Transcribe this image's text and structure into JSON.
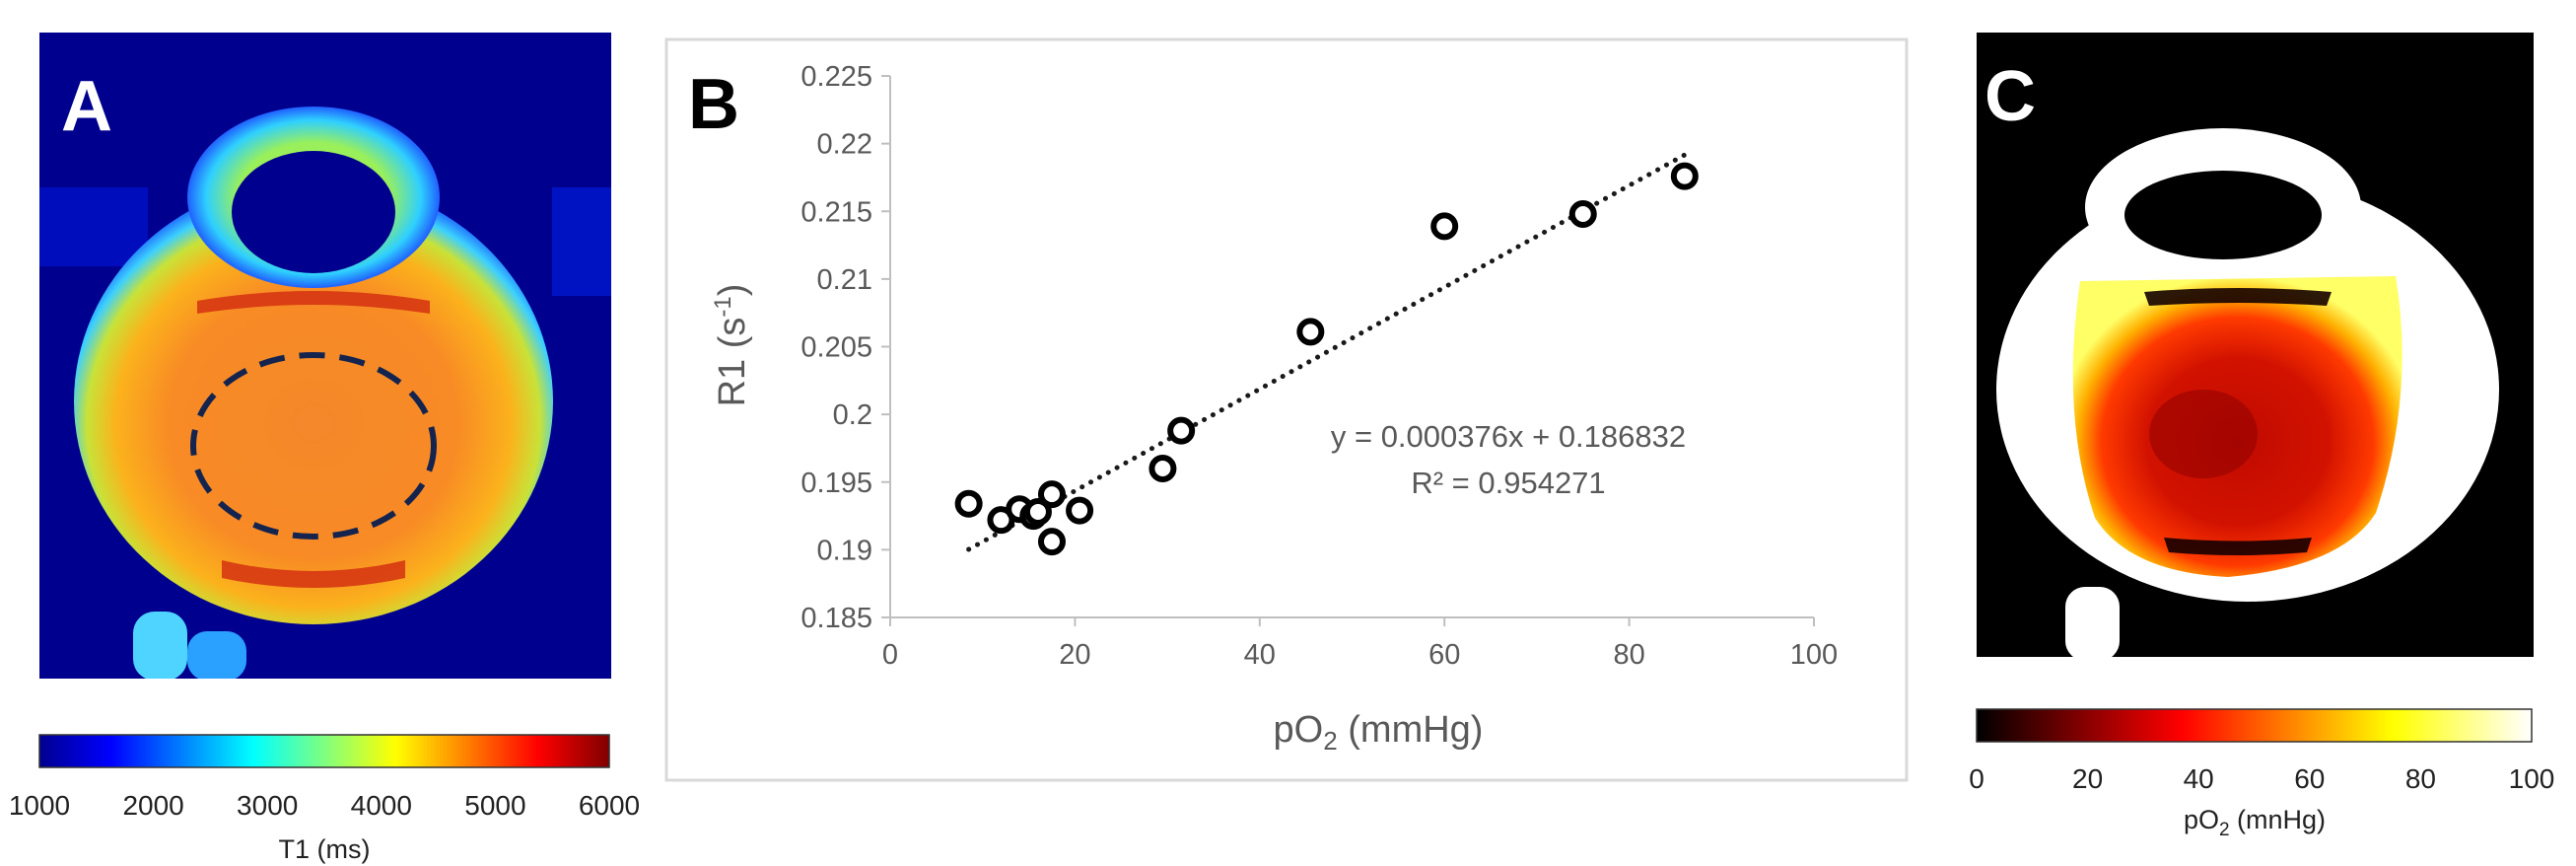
{
  "panels": {
    "a": {
      "letter": "A"
    },
    "b": {
      "letter": "B"
    },
    "c": {
      "letter": "C"
    }
  },
  "colorbar_a": {
    "label": "T1 (ms)",
    "ticks": [
      "1000",
      "2000",
      "3000",
      "4000",
      "5000",
      "6000"
    ],
    "colormap": "jet"
  },
  "colorbar_c": {
    "label_main": "pO",
    "label_sub": "2",
    "label_unit": " (mnHg)",
    "ticks": [
      "0",
      "20",
      "40",
      "60",
      "80",
      "100"
    ],
    "colormap": "hot"
  },
  "chart_data": {
    "type": "scatter",
    "title": "",
    "xlabel_main": "pO",
    "xlabel_sub": "2",
    "xlabel_unit": " (mmHg)",
    "ylabel_main": "R1 (s",
    "ylabel_sup": "-1",
    "ylabel_close": ")",
    "xlim": [
      0,
      100
    ],
    "ylim": [
      0.185,
      0.225
    ],
    "x_ticks": [
      "0",
      "20",
      "40",
      "60",
      "80",
      "100"
    ],
    "y_ticks": [
      "0.185",
      "0.19",
      "0.195",
      "0.2",
      "0.205",
      "0.21",
      "0.215",
      "0.22",
      "0.225"
    ],
    "points": [
      {
        "x": 8.5,
        "y": 0.1934
      },
      {
        "x": 12.0,
        "y": 0.1922
      },
      {
        "x": 14.0,
        "y": 0.193
      },
      {
        "x": 15.5,
        "y": 0.1925
      },
      {
        "x": 16.0,
        "y": 0.1928
      },
      {
        "x": 17.5,
        "y": 0.1941
      },
      {
        "x": 17.5,
        "y": 0.1906
      },
      {
        "x": 20.5,
        "y": 0.1929
      },
      {
        "x": 29.5,
        "y": 0.196
      },
      {
        "x": 31.5,
        "y": 0.1988
      },
      {
        "x": 45.5,
        "y": 0.2061
      },
      {
        "x": 60.0,
        "y": 0.2139
      },
      {
        "x": 75.0,
        "y": 0.2148
      },
      {
        "x": 86.0,
        "y": 0.2176
      }
    ],
    "trendline": {
      "slope": 0.000376,
      "intercept": 0.186832,
      "x_range": [
        8.5,
        86
      ],
      "style": "dotted"
    },
    "equation": "y = 0.000376x + 0.186832",
    "r_squared": "R² = 0.954271",
    "grid": false,
    "legend": "none"
  }
}
